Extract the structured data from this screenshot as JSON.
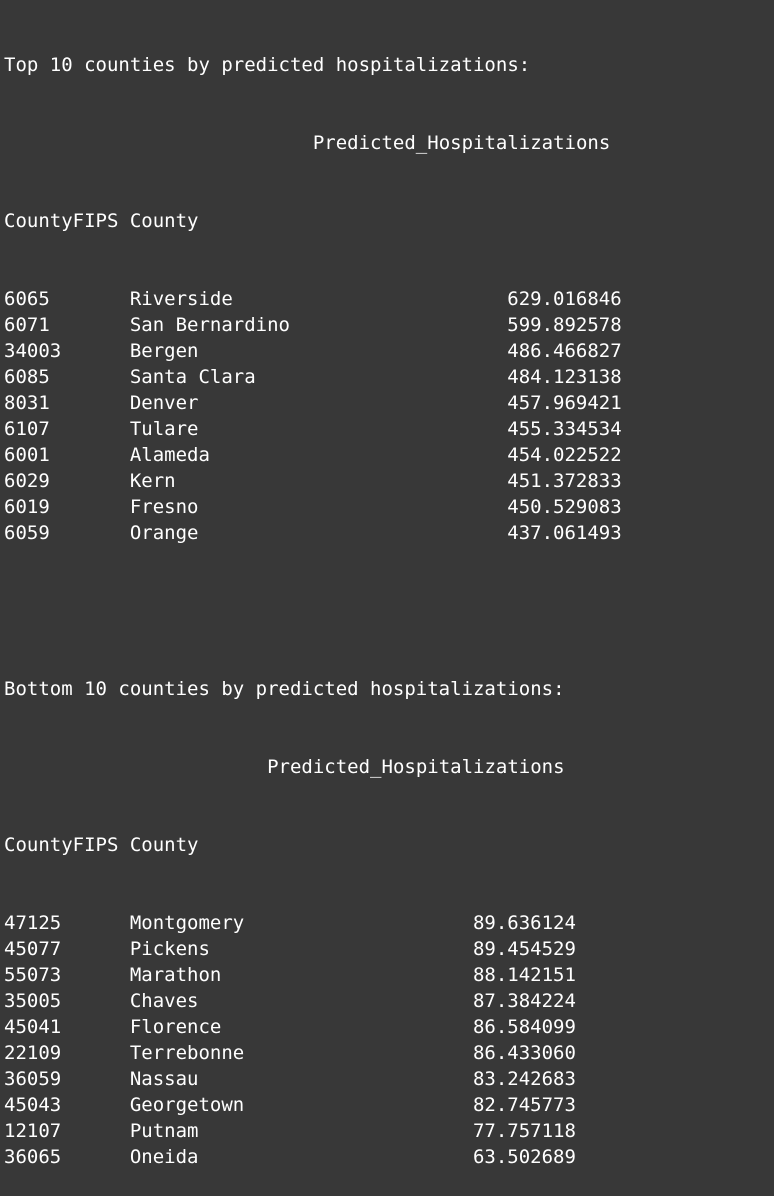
{
  "output": {
    "top_title": "Top 10 counties by predicted hospitalizations:",
    "top_value_header": "Predicted_Hospitalizations",
    "top_index_header": "CountyFIPS County",
    "top_rows": [
      {
        "fips": "6065",
        "county": "Riverside",
        "value": "629.016846"
      },
      {
        "fips": "6071",
        "county": "San Bernardino",
        "value": "599.892578"
      },
      {
        "fips": "34003",
        "county": "Bergen",
        "value": "486.466827"
      },
      {
        "fips": "6085",
        "county": "Santa Clara",
        "value": "484.123138"
      },
      {
        "fips": "8031",
        "county": "Denver",
        "value": "457.969421"
      },
      {
        "fips": "6107",
        "county": "Tulare",
        "value": "455.334534"
      },
      {
        "fips": "6001",
        "county": "Alameda",
        "value": "454.022522"
      },
      {
        "fips": "6029",
        "county": "Kern",
        "value": "451.372833"
      },
      {
        "fips": "6019",
        "county": "Fresno",
        "value": "450.529083"
      },
      {
        "fips": "6059",
        "county": "Orange",
        "value": "437.061493"
      }
    ],
    "bottom_title": "Bottom 10 counties by predicted hospitalizations:",
    "bottom_value_header": "Predicted_Hospitalizations",
    "bottom_index_header": "CountyFIPS County",
    "bottom_rows": [
      {
        "fips": "47125",
        "county": "Montgomery",
        "value": "89.636124"
      },
      {
        "fips": "45077",
        "county": "Pickens",
        "value": "89.454529"
      },
      {
        "fips": "55073",
        "county": "Marathon",
        "value": "88.142151"
      },
      {
        "fips": "35005",
        "county": "Chaves",
        "value": "87.384224"
      },
      {
        "fips": "45041",
        "county": "Florence",
        "value": "86.584099"
      },
      {
        "fips": "22109",
        "county": "Terrebonne",
        "value": "86.433060"
      },
      {
        "fips": "36059",
        "county": "Nassau",
        "value": "83.242683"
      },
      {
        "fips": "45043",
        "county": "Georgetown",
        "value": "82.745773"
      },
      {
        "fips": "12107",
        "county": "Putnam",
        "value": "77.757118"
      },
      {
        "fips": "36065",
        "county": "Oneida",
        "value": "63.502689"
      }
    ]
  }
}
